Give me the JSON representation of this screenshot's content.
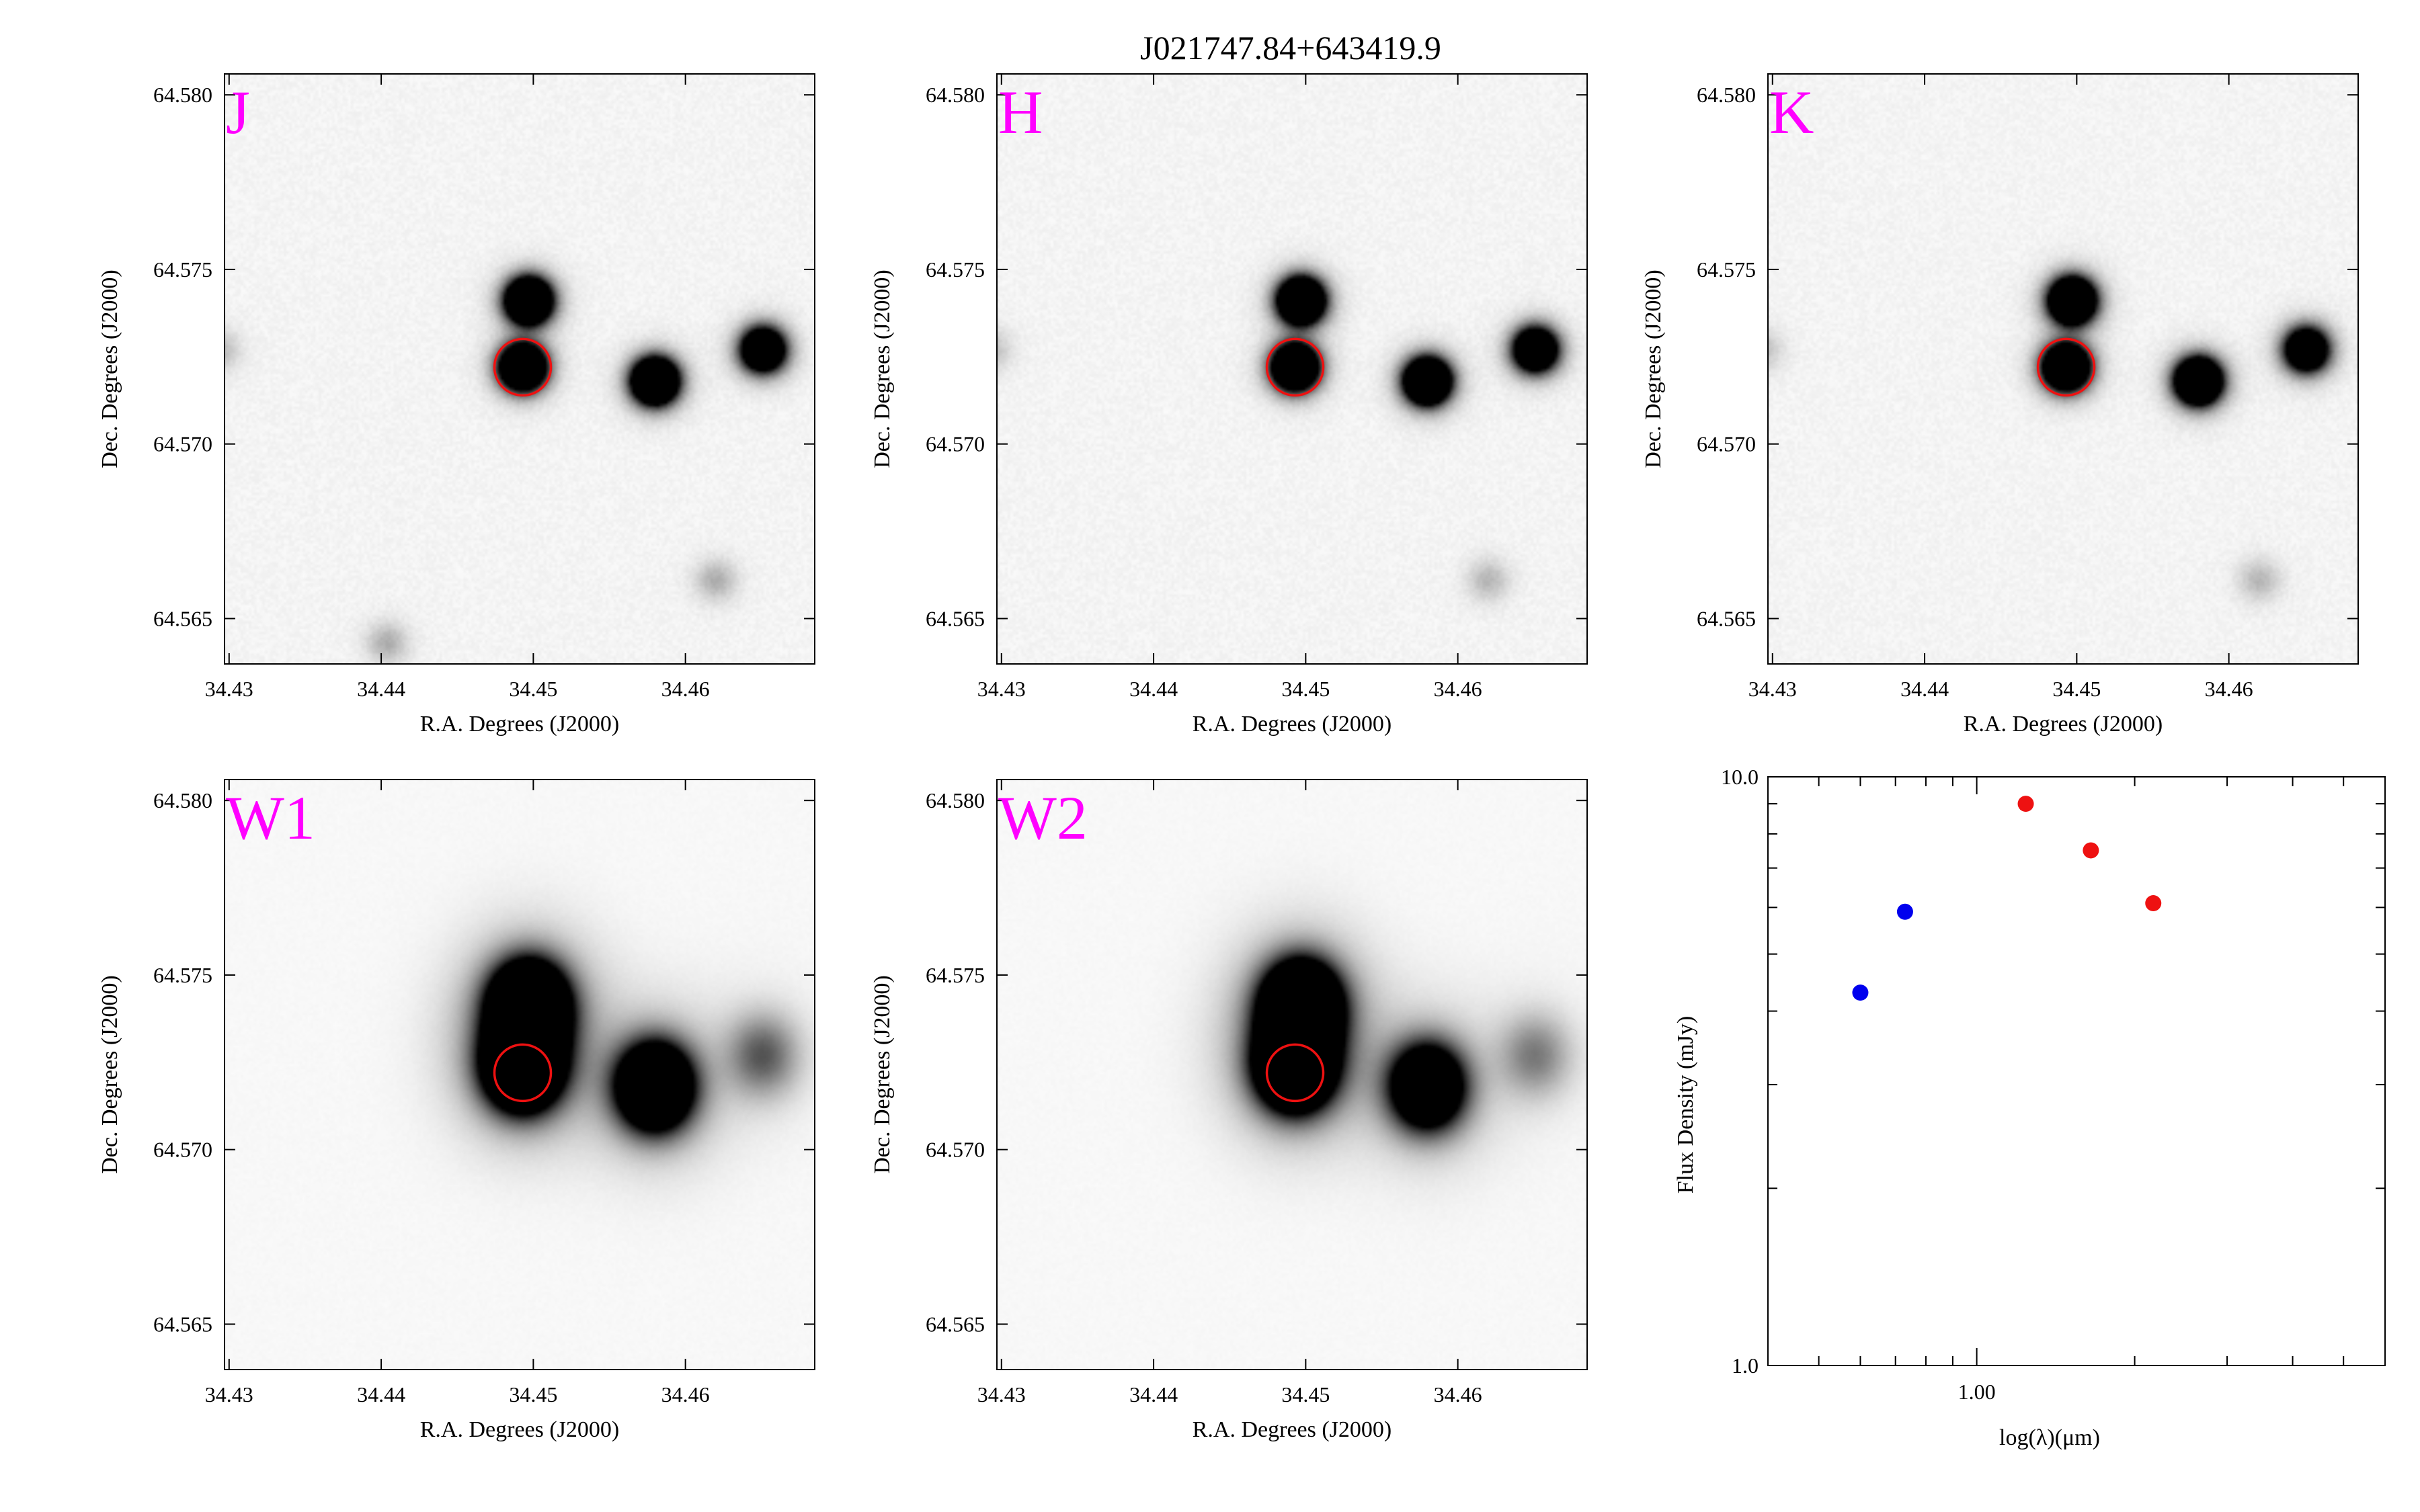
{
  "figure": {
    "title": "J021747.84+643419.9",
    "band_label_color": "#ff00ff",
    "aperture_color": "#ee1111"
  },
  "panels": [
    {
      "band": "J",
      "xlabel": "R.A. Degrees (J2000)",
      "ylabel": "Dec. Degrees (J2000)",
      "xlim": [
        34.4297,
        34.4685
      ],
      "ylim": [
        64.5637,
        64.5806
      ],
      "xticks": [
        "34.43",
        "34.44",
        "34.45",
        "34.46"
      ],
      "xtick_values": [
        34.43,
        34.44,
        34.45,
        34.46
      ],
      "yticks": [
        "64.580",
        "64.575",
        "64.570",
        "64.565"
      ],
      "ytick_values": [
        64.58,
        64.575,
        64.57,
        64.565
      ],
      "aperture": {
        "ra": 34.4493,
        "dec": 64.5722
      },
      "sources": [
        {
          "ra": 34.4497,
          "dec": 64.5741,
          "peak": 1.0
        },
        {
          "ra": 34.4493,
          "dec": 64.5722,
          "peak": 0.95
        },
        {
          "ra": 34.458,
          "dec": 64.5718,
          "peak": 1.0
        },
        {
          "ra": 34.4651,
          "dec": 64.5727,
          "peak": 0.75
        },
        {
          "ra": 34.462,
          "dec": 64.5661,
          "peak": 0.08
        },
        {
          "ra": 34.4404,
          "dec": 64.5643,
          "peak": 0.08
        },
        {
          "ra": 34.4293,
          "dec": 64.5727,
          "peak": 0.07
        }
      ]
    },
    {
      "band": "H",
      "xlabel": "R.A. Degrees (J2000)",
      "ylabel": "Dec. Degrees (J2000)",
      "xlim": [
        34.4297,
        34.4685
      ],
      "ylim": [
        64.5637,
        64.5806
      ],
      "xticks": [
        "34.43",
        "34.44",
        "34.45",
        "34.46"
      ],
      "xtick_values": [
        34.43,
        34.44,
        34.45,
        34.46
      ],
      "yticks": [
        "64.580",
        "64.575",
        "64.570",
        "64.565"
      ],
      "ytick_values": [
        64.58,
        64.575,
        64.57,
        64.565
      ],
      "aperture": {
        "ra": 34.4493,
        "dec": 64.5722
      },
      "sources": [
        {
          "ra": 34.4497,
          "dec": 64.5741,
          "peak": 1.0
        },
        {
          "ra": 34.4493,
          "dec": 64.5722,
          "peak": 0.95
        },
        {
          "ra": 34.458,
          "dec": 64.5718,
          "peak": 1.0
        },
        {
          "ra": 34.4651,
          "dec": 64.5727,
          "peak": 0.75
        },
        {
          "ra": 34.462,
          "dec": 64.5661,
          "peak": 0.07
        },
        {
          "ra": 34.4293,
          "dec": 64.5727,
          "peak": 0.06
        }
      ]
    },
    {
      "band": "K",
      "xlabel": "R.A. Degrees (J2000)",
      "ylabel": "Dec. Degrees (J2000)",
      "xlim": [
        34.4297,
        34.4685
      ],
      "ylim": [
        64.5637,
        64.5806
      ],
      "xticks": [
        "34.43",
        "34.44",
        "34.45",
        "34.46"
      ],
      "xtick_values": [
        34.43,
        34.44,
        34.45,
        34.46
      ],
      "yticks": [
        "64.580",
        "64.575",
        "64.570",
        "64.565"
      ],
      "ytick_values": [
        64.58,
        64.575,
        64.57,
        64.565
      ],
      "aperture": {
        "ra": 34.4493,
        "dec": 64.5722
      },
      "sources": [
        {
          "ra": 34.4497,
          "dec": 64.5741,
          "peak": 1.0
        },
        {
          "ra": 34.4493,
          "dec": 64.5722,
          "peak": 0.95
        },
        {
          "ra": 34.458,
          "dec": 64.5718,
          "peak": 1.0
        },
        {
          "ra": 34.4651,
          "dec": 64.5727,
          "peak": 0.7
        },
        {
          "ra": 34.462,
          "dec": 64.5661,
          "peak": 0.07
        },
        {
          "ra": 34.4293,
          "dec": 64.5727,
          "peak": 0.06
        }
      ]
    },
    {
      "band": "W1",
      "xlabel": "R.A. Degrees (J2000)",
      "ylabel": "Dec. Degrees (J2000)",
      "xlim": [
        34.4297,
        34.4685
      ],
      "ylim": [
        64.5637,
        64.5806
      ],
      "xticks": [
        "34.43",
        "34.44",
        "34.45",
        "34.46"
      ],
      "xtick_values": [
        34.43,
        34.44,
        34.45,
        34.46
      ],
      "yticks": [
        "64.580",
        "64.575",
        "64.570",
        "64.565"
      ],
      "ytick_values": [
        64.58,
        64.575,
        64.57,
        64.565
      ],
      "aperture": {
        "ra": 34.4493,
        "dec": 64.5722
      },
      "sources": [
        {
          "ra": 34.4497,
          "dec": 64.5741,
          "peak": 1.0
        },
        {
          "ra": 34.4493,
          "dec": 64.5724,
          "peak": 1.0
        },
        {
          "ra": 34.458,
          "dec": 64.5718,
          "peak": 0.85
        },
        {
          "ra": 34.4651,
          "dec": 64.5727,
          "peak": 0.18
        }
      ]
    },
    {
      "band": "W2",
      "xlabel": "R.A. Degrees (J2000)",
      "ylabel": "Dec. Degrees (J2000)",
      "xlim": [
        34.4297,
        34.4685
      ],
      "ylim": [
        64.5637,
        64.5806
      ],
      "xticks": [
        "34.43",
        "34.44",
        "34.45",
        "34.46"
      ],
      "xtick_values": [
        34.43,
        34.44,
        34.45,
        34.46
      ],
      "yticks": [
        "64.580",
        "64.575",
        "64.570",
        "64.565"
      ],
      "ytick_values": [
        64.58,
        64.575,
        64.57,
        64.565
      ],
      "aperture": {
        "ra": 34.4493,
        "dec": 64.5722
      },
      "sources": [
        {
          "ra": 34.4497,
          "dec": 64.5741,
          "peak": 1.0
        },
        {
          "ra": 34.4493,
          "dec": 64.5724,
          "peak": 1.0
        },
        {
          "ra": 34.458,
          "dec": 64.5718,
          "peak": 0.7
        },
        {
          "ra": 34.4651,
          "dec": 64.5727,
          "peak": 0.14
        }
      ]
    }
  ],
  "chart_data": {
    "type": "scatter",
    "xlabel": "log(λ)(μm)",
    "ylabel": "Flux Density (mJy)",
    "xscale": "log",
    "yscale": "log",
    "xlim": [
      0.4,
      6.0
    ],
    "ylim": [
      1.0,
      10.0
    ],
    "xticks": [
      "1.00"
    ],
    "xtick_values": [
      1.0
    ],
    "yticks": [
      "10.0",
      "1.0"
    ],
    "ytick_values": [
      10.0,
      1.0
    ],
    "series": [
      {
        "color": "#0000ee",
        "points": [
          {
            "x": 0.6,
            "y": 4.3
          },
          {
            "x": 0.73,
            "y": 5.9
          }
        ]
      },
      {
        "color": "#ee1111",
        "points": [
          {
            "x": 1.24,
            "y": 9.0
          },
          {
            "x": 1.65,
            "y": 7.5
          },
          {
            "x": 2.17,
            "y": 6.1
          }
        ]
      }
    ]
  }
}
